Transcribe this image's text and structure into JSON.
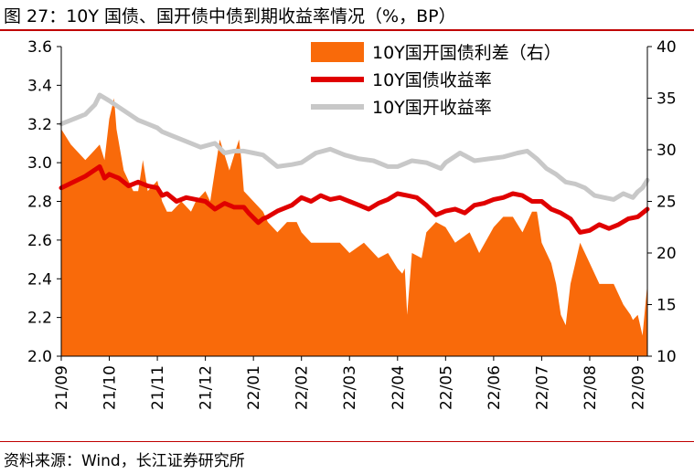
{
  "figure": {
    "title": "图 27：10Y 国债、国开债中债到期收益率情况（%，BP）",
    "source": "资料来源：Wind，长江证券研究所"
  },
  "colors": {
    "spread": "#f96a0a",
    "gov": "#e00000",
    "cdb": "#c8c8c8",
    "rule": "#c00000"
  },
  "chart_data": {
    "type": "area+line",
    "x_ticks": [
      "21/09",
      "21/10",
      "21/11",
      "21/12",
      "22/01",
      "22/02",
      "22/03",
      "22/04",
      "22/05",
      "22/06",
      "22/07",
      "22/08",
      "22/09"
    ],
    "y_left": {
      "min": 2.0,
      "max": 3.6,
      "ticks": [
        "2.0",
        "2.2",
        "2.4",
        "2.6",
        "2.8",
        "3.0",
        "3.2",
        "3.4",
        "3.6"
      ]
    },
    "y_right": {
      "min": 10,
      "max": 40,
      "ticks": [
        "10",
        "15",
        "20",
        "25",
        "30",
        "35",
        "40"
      ]
    },
    "months_domain": [
      0,
      12.2
    ],
    "series": [
      {
        "name": "10Y国开国债利差（右）",
        "type": "area",
        "axis": "right",
        "x": [
          0,
          0.2,
          0.5,
          0.7,
          0.8,
          0.9,
          1.0,
          1.1,
          1.15,
          1.3,
          1.5,
          1.6,
          1.7,
          1.8,
          2.0,
          2.1,
          2.2,
          2.3,
          2.5,
          2.7,
          2.8,
          3.0,
          3.1,
          3.2,
          3.3,
          3.5,
          3.6,
          3.7,
          3.75,
          3.8,
          4.0,
          4.2,
          4.3,
          4.5,
          4.7,
          4.9,
          5.0,
          5.2,
          5.5,
          5.8,
          6.0,
          6.3,
          6.6,
          6.8,
          7.0,
          7.1,
          7.15,
          7.2,
          7.3,
          7.5,
          7.6,
          7.8,
          8.0,
          8.2,
          8.5,
          8.7,
          9.0,
          9.2,
          9.4,
          9.6,
          9.8,
          9.9,
          10.0,
          10.2,
          10.3,
          10.4,
          10.5,
          10.6,
          10.7,
          10.8,
          11.0,
          11.2,
          11.5,
          11.7,
          11.85,
          11.9,
          12.0,
          12.1,
          12.2
        ],
        "values": [
          32,
          30.5,
          29,
          30,
          30.5,
          29,
          33,
          35,
          32,
          28,
          26,
          26,
          29,
          26,
          27,
          25,
          24,
          24,
          25,
          24,
          25,
          26,
          25,
          28,
          31,
          28,
          29.5,
          31,
          29,
          26,
          25,
          24,
          23,
          22,
          23,
          23,
          22,
          21,
          21,
          21,
          20,
          21,
          19.5,
          20,
          18.5,
          18,
          18.5,
          14,
          20,
          19.5,
          22,
          23,
          22.5,
          21,
          22,
          20,
          22.5,
          23.5,
          23.5,
          22,
          24,
          24,
          21,
          19,
          17,
          14,
          13,
          17,
          19,
          21,
          19,
          17,
          17,
          15,
          14,
          13.5,
          14,
          12,
          17
        ]
      },
      {
        "name": "10Y国债收益率",
        "type": "line",
        "axis": "left",
        "x": [
          0,
          0.5,
          0.8,
          0.9,
          1.0,
          1.2,
          1.4,
          1.6,
          1.8,
          2.0,
          2.1,
          2.2,
          2.4,
          2.6,
          2.8,
          3.0,
          3.2,
          3.4,
          3.6,
          3.8,
          3.9,
          4.1,
          4.2,
          4.3,
          4.5,
          4.8,
          5.0,
          5.2,
          5.4,
          5.6,
          5.8,
          6.0,
          6.2,
          6.4,
          6.6,
          6.8,
          7.0,
          7.2,
          7.4,
          7.6,
          7.8,
          8.0,
          8.2,
          8.4,
          8.6,
          8.8,
          9.0,
          9.2,
          9.4,
          9.6,
          9.8,
          10.0,
          10.2,
          10.4,
          10.6,
          10.8,
          11.0,
          11.2,
          11.4,
          11.6,
          11.8,
          12.0,
          12.2
        ],
        "values": [
          2.87,
          2.93,
          2.98,
          2.92,
          2.94,
          2.92,
          2.88,
          2.9,
          2.88,
          2.87,
          2.83,
          2.84,
          2.8,
          2.82,
          2.81,
          2.8,
          2.76,
          2.79,
          2.77,
          2.77,
          2.74,
          2.69,
          2.71,
          2.72,
          2.75,
          2.78,
          2.82,
          2.8,
          2.83,
          2.81,
          2.82,
          2.8,
          2.78,
          2.76,
          2.79,
          2.81,
          2.84,
          2.83,
          2.82,
          2.78,
          2.73,
          2.75,
          2.76,
          2.74,
          2.78,
          2.79,
          2.81,
          2.82,
          2.84,
          2.83,
          2.8,
          2.8,
          2.76,
          2.74,
          2.71,
          2.64,
          2.65,
          2.68,
          2.66,
          2.68,
          2.71,
          2.72,
          2.76
        ]
      },
      {
        "name": "10Y国开收益率",
        "type": "line",
        "axis": "left",
        "x": [
          0,
          0.3,
          0.5,
          0.7,
          0.8,
          1.0,
          1.3,
          1.6,
          1.8,
          2.0,
          2.1,
          2.3,
          2.6,
          2.9,
          3.2,
          3.4,
          3.6,
          3.8,
          4.0,
          4.2,
          4.5,
          4.8,
          5.0,
          5.3,
          5.6,
          5.9,
          6.2,
          6.5,
          6.8,
          7.0,
          7.3,
          7.6,
          7.9,
          8.0,
          8.3,
          8.6,
          8.9,
          9.2,
          9.5,
          9.7,
          9.9,
          10.1,
          10.3,
          10.5,
          10.7,
          10.9,
          11.1,
          11.3,
          11.5,
          11.7,
          11.9,
          12.0,
          12.1,
          12.2
        ],
        "values": [
          3.2,
          3.23,
          3.25,
          3.3,
          3.35,
          3.32,
          3.27,
          3.22,
          3.2,
          3.18,
          3.16,
          3.14,
          3.11,
          3.08,
          3.1,
          3.05,
          3.06,
          3.06,
          3.05,
          3.04,
          2.98,
          2.99,
          3.0,
          3.05,
          3.07,
          3.04,
          3.02,
          3.01,
          2.98,
          2.98,
          3.01,
          3.0,
          2.97,
          3.0,
          3.05,
          3.01,
          3.02,
          3.03,
          3.05,
          3.06,
          3.02,
          2.97,
          2.94,
          2.9,
          2.89,
          2.87,
          2.83,
          2.82,
          2.81,
          2.84,
          2.82,
          2.85,
          2.87,
          2.91
        ]
      }
    ],
    "legend": [
      "10Y国开国债利差（右）",
      "10Y国债收益率",
      "10Y国开收益率"
    ]
  }
}
